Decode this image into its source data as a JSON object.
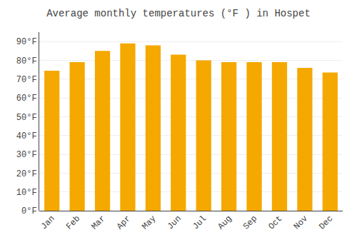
{
  "chart_data": {
    "type": "bar",
    "title": "Average monthly temperatures (°F ) in Hospet",
    "categories": [
      "Jan",
      "Feb",
      "Mar",
      "Apr",
      "May",
      "Jun",
      "Jul",
      "Aug",
      "Sep",
      "Oct",
      "Nov",
      "Dec"
    ],
    "values": [
      74.5,
      79.0,
      85.0,
      89.0,
      88.0,
      83.0,
      80.0,
      79.0,
      79.0,
      79.0,
      76.0,
      73.5
    ],
    "color": "#F5A800",
    "ylim": [
      0,
      95
    ],
    "yticks": [
      {
        "value": 0,
        "label": "0°F"
      },
      {
        "value": 10,
        "label": "10°F"
      },
      {
        "value": 20,
        "label": "20°F"
      },
      {
        "value": 30,
        "label": "30°F"
      },
      {
        "value": 40,
        "label": "40°F"
      },
      {
        "value": 50,
        "label": "50°F"
      },
      {
        "value": 60,
        "label": "60°F"
      },
      {
        "value": 70,
        "label": "70°F"
      },
      {
        "value": 80,
        "label": "80°F"
      },
      {
        "value": 90,
        "label": "90°F"
      }
    ],
    "grid": true
  }
}
